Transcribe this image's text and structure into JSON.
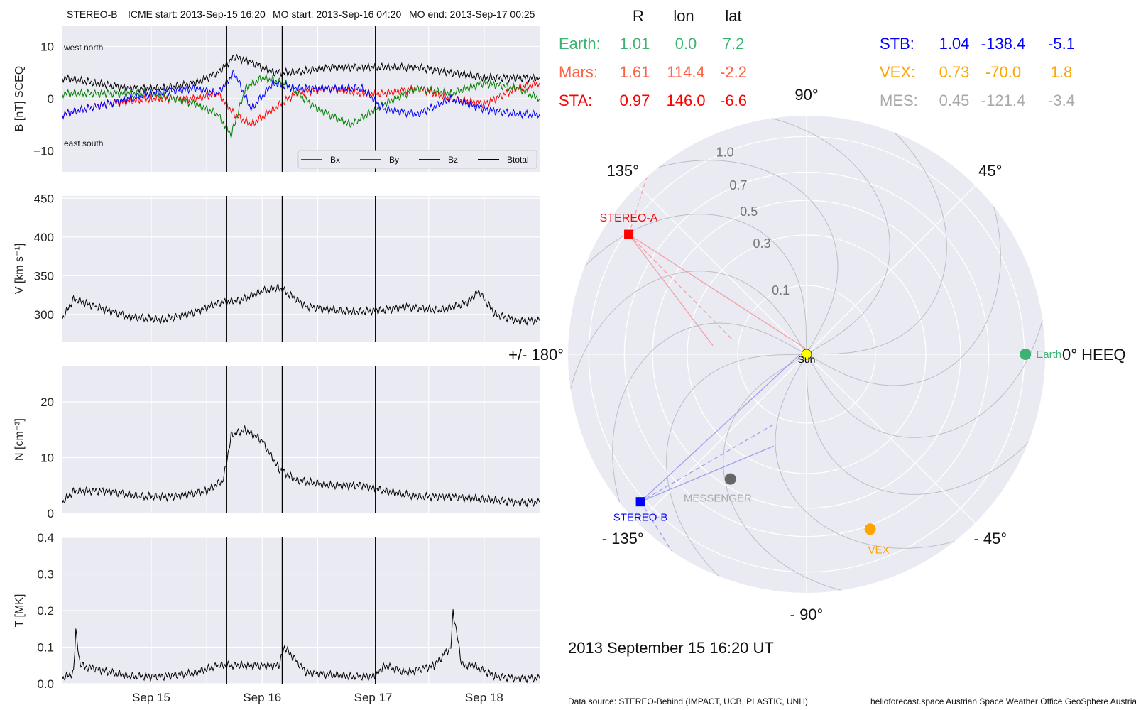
{
  "header": {
    "spacecraft": "STEREO-B",
    "icme_start": "ICME start: 2013-Sep-15 16:20",
    "mo_start": "MO start: 2013-Sep-16 04:20",
    "mo_end": "MO end: 2013-Sep-17 00:25"
  },
  "footer": {
    "timestamp": "2013 September 15  16:20 UT",
    "source": "Data source: STEREO-Behind (IMPACT, UCB, PLASTIC, UNH)",
    "credits": "helioforecast.space   Austrian Space Weather Office   GeoSphere Austria"
  },
  "position_table": {
    "columns": [
      "R",
      "lon",
      "lat"
    ],
    "left": [
      {
        "name": "Earth:",
        "R": "1.01",
        "lon": "0.0",
        "lat": "7.2",
        "color": "#3cb371"
      },
      {
        "name": "Mars:",
        "R": "1.61",
        "lon": "114.4",
        "lat": "-2.2",
        "color": "#ff6347"
      },
      {
        "name": "STA:",
        "R": "0.97",
        "lon": "146.0",
        "lat": "-6.6",
        "color": "#ff0000"
      }
    ],
    "right": [
      {
        "name": "STB:",
        "R": "1.04",
        "lon": "-138.4",
        "lat": "-5.1",
        "color": "#0000ff"
      },
      {
        "name": "VEX:",
        "R": "0.73",
        "lon": "-70.0",
        "lat": "1.8",
        "color": "#ffa500"
      },
      {
        "name": "MES:",
        "R": "0.45",
        "lon": "-121.4",
        "lat": "-3.4",
        "color": "#a9a9a9"
      }
    ]
  },
  "chart_data": [
    {
      "type": "line",
      "ylabel": "B [nT] SCEQ",
      "ylim": [
        -14,
        14
      ],
      "yticks": [
        "10",
        "0",
        "−10"
      ],
      "ytick_values": [
        10,
        0,
        -10
      ],
      "xticks": [
        "Sep 15",
        "Sep 16",
        "Sep 17",
        "Sep 18"
      ],
      "xlim_days": [
        14.2,
        18.5
      ],
      "event_lines_days": [
        15.68,
        16.18,
        17.02
      ],
      "corner_labels": {
        "top": "west    north",
        "bottom": "east    south"
      },
      "legend": [
        "Bx",
        "By",
        "Bz",
        "Btotal"
      ],
      "series": [
        {
          "name": "Bx",
          "color": "#ff0000",
          "x": [
            14.2,
            14.6,
            15.0,
            15.4,
            15.6,
            15.75,
            15.9,
            16.1,
            16.3,
            16.6,
            16.9,
            17.1,
            17.4,
            17.7,
            18.0,
            18.3,
            18.5
          ],
          "values": [
            -3,
            -1,
            0,
            0,
            1,
            -3,
            -5,
            -2,
            1,
            2,
            1,
            1,
            2,
            0,
            -1,
            2,
            3
          ]
        },
        {
          "name": "By",
          "color": "#008000",
          "x": [
            14.2,
            14.6,
            15.0,
            15.4,
            15.6,
            15.72,
            15.85,
            16.0,
            16.2,
            16.5,
            16.8,
            17.1,
            17.4,
            17.7,
            18.0,
            18.3,
            18.5
          ],
          "values": [
            1,
            1,
            1,
            -1,
            -3,
            -7,
            2,
            4,
            3,
            -2,
            -5,
            -1,
            2,
            1,
            3,
            2,
            0
          ]
        },
        {
          "name": "Bz",
          "color": "#0000ff",
          "x": [
            14.2,
            14.6,
            15.0,
            15.4,
            15.6,
            15.75,
            15.9,
            16.1,
            16.3,
            16.6,
            16.9,
            17.1,
            17.4,
            17.7,
            18.0,
            18.3,
            18.5
          ],
          "values": [
            -3,
            -1,
            1,
            2,
            1,
            5,
            -2,
            3,
            2,
            2,
            2,
            -2,
            -3,
            0,
            -2,
            -3,
            -3
          ]
        },
        {
          "name": "Btotal",
          "color": "#000000",
          "x": [
            14.2,
            14.5,
            14.8,
            15.1,
            15.4,
            15.6,
            15.75,
            15.9,
            16.1,
            16.3,
            16.6,
            16.9,
            17.1,
            17.4,
            17.7,
            18.0,
            18.3,
            18.5
          ],
          "values": [
            4,
            3,
            2,
            2,
            3,
            5,
            8,
            7,
            5,
            5,
            6,
            6,
            6,
            6,
            5,
            4,
            4,
            4
          ]
        }
      ]
    },
    {
      "type": "line",
      "ylabel": "V [km s⁻¹]",
      "ylim": [
        265,
        453
      ],
      "yticks": [
        "450",
        "400",
        "350",
        "300"
      ],
      "ytick_values": [
        450,
        400,
        350,
        300
      ],
      "xticks": [
        "Sep 15",
        "Sep 16",
        "Sep 17",
        "Sep 18"
      ],
      "xlim_days": [
        14.2,
        18.5
      ],
      "event_lines_days": [
        15.68,
        16.18,
        17.02
      ],
      "series": [
        {
          "name": "V",
          "color": "#000000",
          "x": [
            14.2,
            14.3,
            14.5,
            14.8,
            15.1,
            15.4,
            15.6,
            15.8,
            16.0,
            16.15,
            16.4,
            16.8,
            17.05,
            17.3,
            17.6,
            17.85,
            17.95,
            18.1,
            18.3,
            18.5
          ],
          "values": [
            295,
            320,
            310,
            297,
            293,
            303,
            315,
            318,
            330,
            335,
            310,
            303,
            305,
            310,
            305,
            315,
            330,
            300,
            292,
            292
          ]
        }
      ]
    },
    {
      "type": "line",
      "ylabel": "N [cm⁻³]",
      "ylim": [
        0,
        26.5
      ],
      "yticks": [
        "20",
        "10",
        "0"
      ],
      "ytick_values": [
        20,
        10,
        0
      ],
      "xticks": [
        "Sep 15",
        "Sep 16",
        "Sep 17",
        "Sep 18"
      ],
      "xlim_days": [
        14.2,
        18.5
      ],
      "event_lines_days": [
        15.68,
        16.18,
        17.02
      ],
      "series": [
        {
          "name": "N",
          "color": "#000000",
          "x": [
            14.2,
            14.3,
            14.6,
            14.9,
            15.2,
            15.5,
            15.65,
            15.72,
            15.85,
            16.0,
            16.15,
            16.3,
            16.6,
            16.9,
            17.1,
            17.4,
            17.7,
            18.0,
            18.3,
            18.5
          ],
          "values": [
            2,
            4,
            4,
            3,
            3,
            4,
            6,
            14,
            15,
            13,
            8,
            6,
            5,
            5,
            4,
            3,
            3,
            2.5,
            2,
            2
          ]
        }
      ]
    },
    {
      "type": "line",
      "ylabel": "T [MK]",
      "ylim": [
        0,
        0.4
      ],
      "yticks": [
        "0.4",
        "0.3",
        "0.2",
        "0.1",
        "0.0"
      ],
      "ytick_values": [
        0.4,
        0.3,
        0.2,
        0.1,
        0.0
      ],
      "xticks": [
        "Sep 15",
        "Sep 16",
        "Sep 17",
        "Sep 18"
      ],
      "xlim_days": [
        14.2,
        18.5
      ],
      "event_lines_days": [
        15.68,
        16.18,
        17.02
      ],
      "series": [
        {
          "name": "T",
          "color": "#000000",
          "x": [
            14.2,
            14.3,
            14.32,
            14.36,
            14.5,
            14.8,
            15.1,
            15.4,
            15.6,
            15.8,
            16.0,
            16.15,
            16.2,
            16.4,
            16.8,
            17.02,
            17.1,
            17.3,
            17.55,
            17.7,
            17.72,
            17.8,
            17.9,
            18.1,
            18.3,
            18.5
          ],
          "values": [
            0.015,
            0.03,
            0.15,
            0.05,
            0.04,
            0.02,
            0.02,
            0.03,
            0.05,
            0.05,
            0.05,
            0.05,
            0.1,
            0.03,
            0.02,
            0.02,
            0.05,
            0.03,
            0.05,
            0.1,
            0.2,
            0.05,
            0.05,
            0.02,
            0.015,
            0.015
          ]
        }
      ]
    },
    {
      "type": "scatter",
      "subtype": "polar",
      "angle_labels": [
        "0° HEEQ",
        "45°",
        "90°",
        "135°",
        "+/- 180°",
        "- 135°",
        "- 90°",
        "- 45°"
      ],
      "angle_values": [
        0,
        45,
        90,
        135,
        180,
        -135,
        -90,
        -45
      ],
      "radial_ticks": [
        "0.1",
        "0.3",
        "0.5",
        "0.7",
        "1.0"
      ],
      "radial_values": [
        0.1,
        0.3,
        0.5,
        0.7,
        1.0
      ],
      "rmax": 1.2,
      "bodies": [
        {
          "name": "Sun",
          "lon": 0,
          "r": 0,
          "color": "#ffff00",
          "shape": "circle"
        },
        {
          "name": "Earth",
          "lon": 0.0,
          "r": 1.01,
          "color": "#3cb371",
          "shape": "circle"
        },
        {
          "name": "STEREO-A",
          "lon": 146.0,
          "r": 0.97,
          "color": "#ff0000",
          "shape": "square"
        },
        {
          "name": "STEREO-B",
          "lon": -138.4,
          "r": 1.04,
          "color": "#0000ff",
          "shape": "square"
        },
        {
          "name": "VEX",
          "lon": -70.0,
          "r": 0.73,
          "color": "#ffa500",
          "shape": "circle"
        },
        {
          "name": "MESSENGER",
          "lon": -121.4,
          "r": 0.45,
          "color": "#a9a9a9",
          "shape": "circle"
        }
      ]
    }
  ]
}
